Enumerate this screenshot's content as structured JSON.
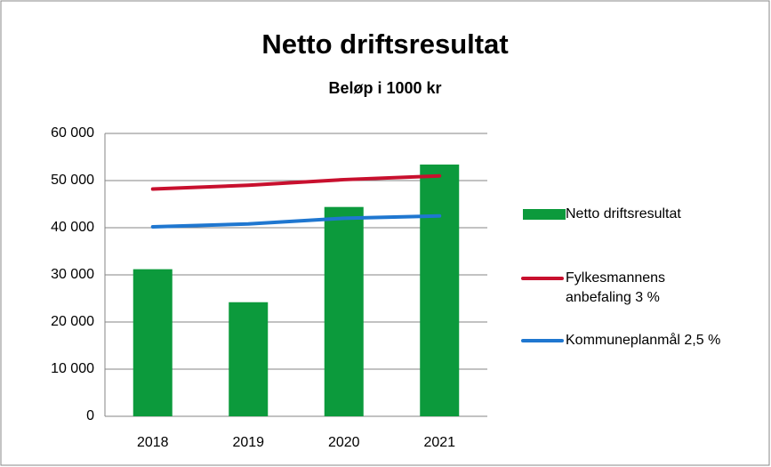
{
  "chart_data": {
    "type": "bar",
    "title": "Netto driftsresultat",
    "subtitle": "Beløp i 1000 kr",
    "categories": [
      "2018",
      "2019",
      "2020",
      "2021"
    ],
    "series": [
      {
        "name": "Netto driftsresultat",
        "type": "bar",
        "color": "#0c9a3c",
        "values": [
          31200,
          24200,
          44400,
          53400
        ]
      },
      {
        "name": "Fylkesmannens anbefaling 3 %",
        "type": "line",
        "color": "#c8102e",
        "values": [
          48200,
          49000,
          50200,
          51000
        ]
      },
      {
        "name": "Kommuneplanmål 2,5 %",
        "type": "line",
        "color": "#1f77d0",
        "values": [
          40200,
          40800,
          42000,
          42500
        ]
      }
    ],
    "ylim": [
      0,
      60000
    ],
    "yticks": [
      0,
      {
        "value": 10000,
        "label": "10 000"
      },
      {
        "value": 20000,
        "label": "20 000"
      },
      {
        "value": 30000,
        "label": "30 000"
      },
      {
        "value": 40000,
        "label": "40 000"
      },
      {
        "value": 50000,
        "label": "50 000"
      },
      {
        "value": 60000,
        "label": "60 000"
      }
    ],
    "grid": true,
    "legend": "right"
  }
}
